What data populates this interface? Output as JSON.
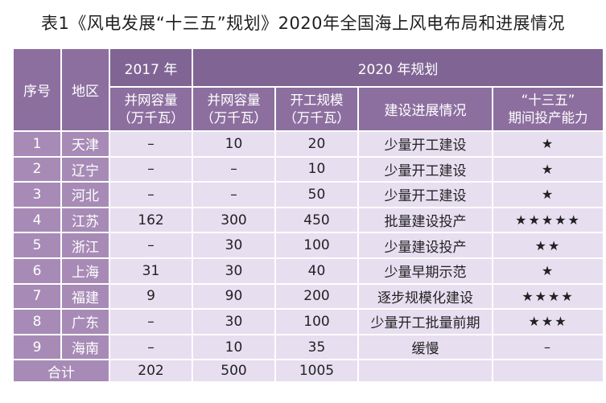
{
  "title": "表1《风电发展“十三五”规划》2020年全国海上风电布局和进展情况",
  "headers": {
    "seq": "序号",
    "region": "地区",
    "year2017": "2017 年",
    "plan2020": "2020 年规划",
    "grid2017_line1": "并网容量",
    "grid2017_line2": "（万千瓦）",
    "grid2020_line1": "并网容量",
    "grid2020_line2": "（万千瓦）",
    "construction_line1": "开工规模",
    "construction_line2": "（万千瓦）",
    "progress": "建设进展情况",
    "capacity_line1": "“十三五”",
    "capacity_line2": "期间投产能力"
  },
  "rows": [
    {
      "seq": "1",
      "region": "天津",
      "grid2017": "–",
      "grid2020": "10",
      "construction": "20",
      "progress": "少量开工建设",
      "capacity": "★"
    },
    {
      "seq": "2",
      "region": "辽宁",
      "grid2017": "–",
      "grid2020": "–",
      "construction": "10",
      "progress": "少量开工建设",
      "capacity": "★"
    },
    {
      "seq": "3",
      "region": "河北",
      "grid2017": "–",
      "grid2020": "–",
      "construction": "50",
      "progress": "少量开工建设",
      "capacity": "★"
    },
    {
      "seq": "4",
      "region": "江苏",
      "grid2017": "162",
      "grid2020": "300",
      "construction": "450",
      "progress": "批量建设投产",
      "capacity": "★★★★★"
    },
    {
      "seq": "5",
      "region": "浙江",
      "grid2017": "–",
      "grid2020": "30",
      "construction": "100",
      "progress": "少量建设投产",
      "capacity": "★★"
    },
    {
      "seq": "6",
      "region": "上海",
      "grid2017": "31",
      "grid2020": "30",
      "construction": "40",
      "progress": "少量早期示范",
      "capacity": "★"
    },
    {
      "seq": "7",
      "region": "福建",
      "grid2017": "9",
      "grid2020": "90",
      "construction": "200",
      "progress": "逐步规模化建设",
      "capacity": "★★★★"
    },
    {
      "seq": "8",
      "region": "广东",
      "grid2017": "–",
      "grid2020": "30",
      "construction": "100",
      "progress": "少量开工批量前期",
      "capacity": "★★★"
    },
    {
      "seq": "9",
      "region": "海南",
      "grid2017": "–",
      "grid2020": "10",
      "construction": "35",
      "progress": "缓慢",
      "capacity": "–"
    }
  ],
  "total": {
    "label": "合计",
    "grid2017": "202",
    "grid2020": "500",
    "construction": "1005"
  },
  "colors": {
    "header": "#8d6f9f",
    "label_cell": "#a78bb6",
    "data_cell": "#e7def0"
  }
}
